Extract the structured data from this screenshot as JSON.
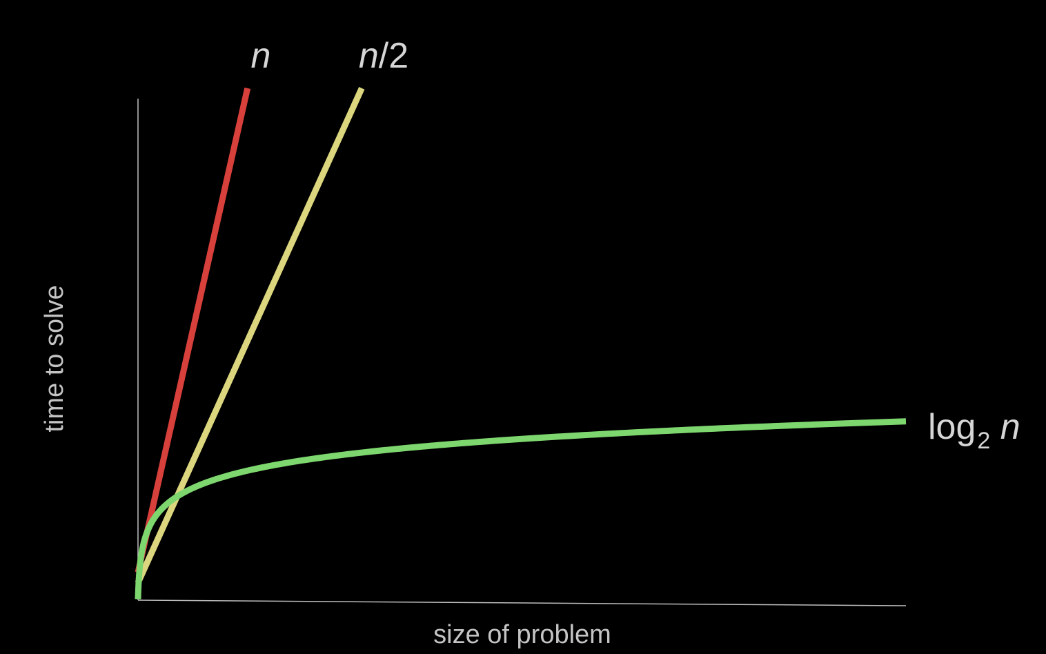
{
  "chart_data": {
    "type": "line",
    "title": "",
    "xlabel": "size of problem",
    "ylabel": "time to solve",
    "xlim": [
      0,
      1100
    ],
    "ylim": [
      0,
      720
    ],
    "grid": false,
    "legend": "none",
    "series": [
      {
        "name": "n",
        "label_parts": [
          {
            "text": "n",
            "style": "italic"
          }
        ],
        "color": "#d8403c",
        "type": "linear",
        "slope": 4.43,
        "intercept": 40
      },
      {
        "name": "n/2",
        "label_parts": [
          {
            "text": "n",
            "style": "italic"
          },
          {
            "text": "/2",
            "style": "normal"
          }
        ],
        "color": "#dcd77e",
        "type": "linear",
        "slope": 2.215,
        "intercept": 25
      },
      {
        "name": "log2 n",
        "label_parts": [
          {
            "text": "log",
            "style": "normal"
          },
          {
            "text": "2",
            "style": "subscript"
          },
          {
            "text": " n",
            "style": "italic"
          }
        ],
        "color": "#7ed66f",
        "type": "log",
        "scale": 25.26,
        "offset": 1.5
      }
    ]
  }
}
